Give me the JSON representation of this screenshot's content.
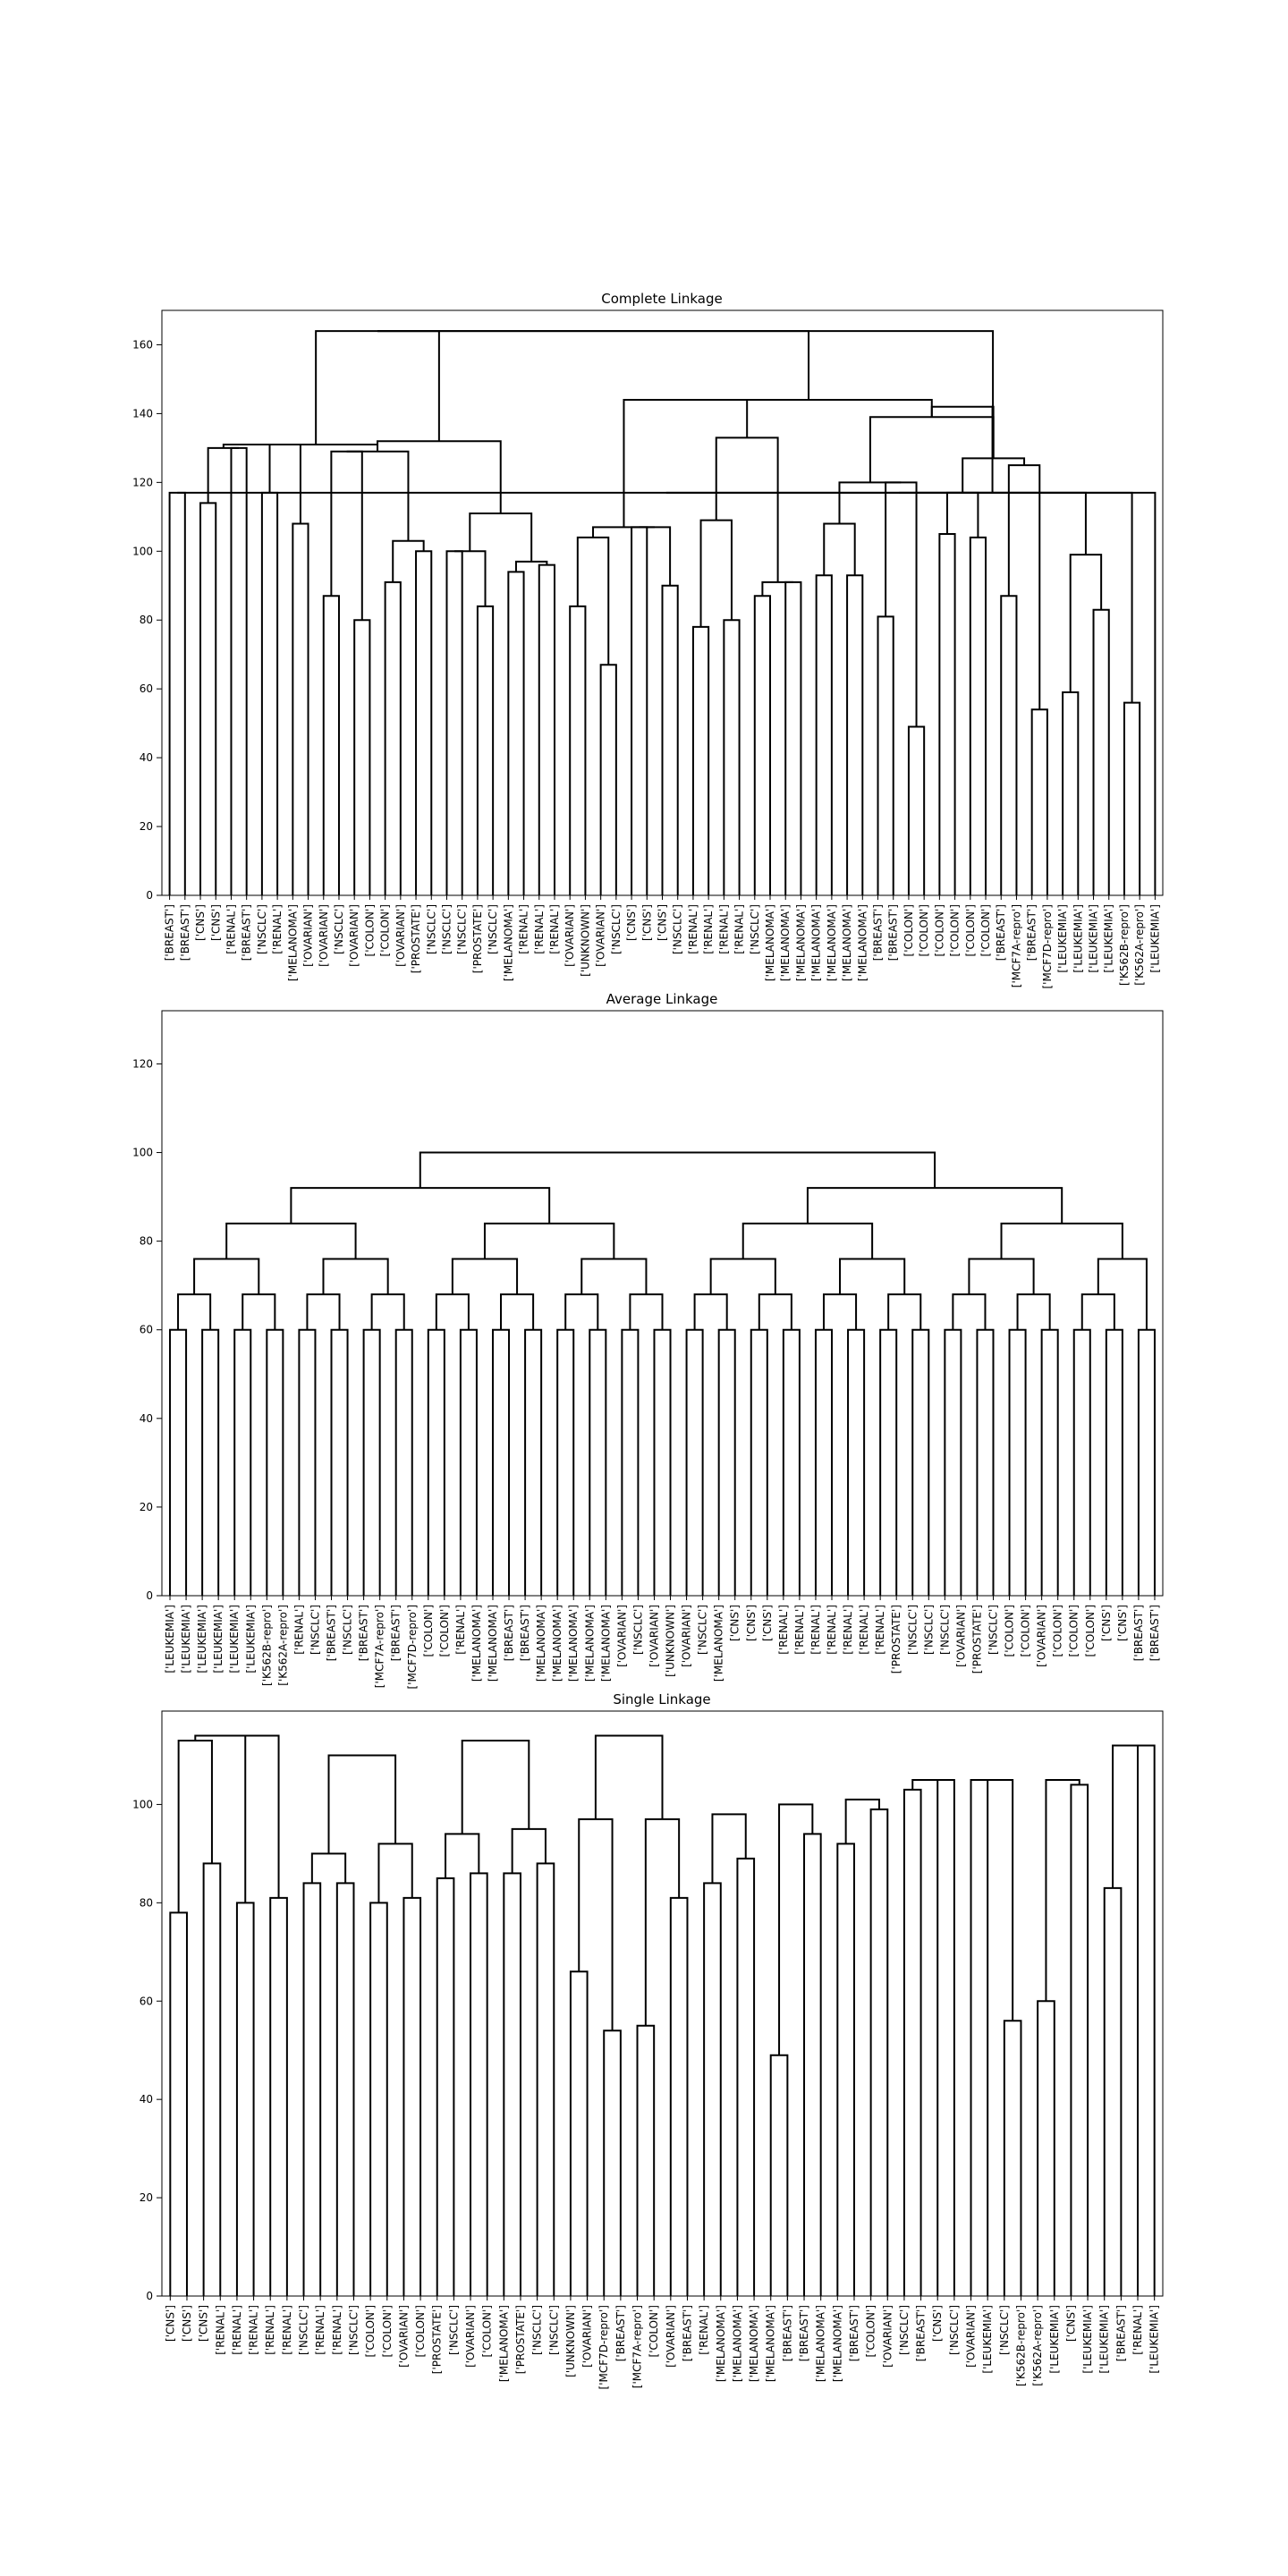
{
  "chart_data": [
    {
      "type": "dendrogram",
      "title": "Complete Linkage",
      "xlabel": "",
      "ylabel": "",
      "ylim": [
        0,
        170
      ],
      "yticks": [
        0,
        20,
        40,
        60,
        80,
        100,
        120,
        140,
        160
      ],
      "grid": false,
      "leaves": [
        "['BREAST']",
        "['BREAST']",
        "['CNS']",
        "['CNS']",
        "['RENAL']",
        "['BREAST']",
        "['NSCLC']",
        "['RENAL']",
        "['MELANOMA']",
        "['OVARIAN']",
        "['OVARIAN']",
        "['NSCLC']",
        "['OVARIAN']",
        "['COLON']",
        "['COLON']",
        "['OVARIAN']",
        "['PROSTATE']",
        "['NSCLC']",
        "['NSCLC']",
        "['NSCLC']",
        "['PROSTATE']",
        "['NSCLC']",
        "['MELANOMA']",
        "['RENAL']",
        "['RENAL']",
        "['RENAL']",
        "['OVARIAN']",
        "['UNKNOWN']",
        "['OVARIAN']",
        "['NSCLC']",
        "['CNS']",
        "['CNS']",
        "['CNS']",
        "['NSCLC']",
        "['RENAL']",
        "['RENAL']",
        "['RENAL']",
        "['RENAL']",
        "['NSCLC']",
        "['MELANOMA']",
        "['MELANOMA']",
        "['MELANOMA']",
        "['MELANOMA']",
        "['MELANOMA']",
        "['MELANOMA']",
        "['MELANOMA']",
        "['BREAST']",
        "['BREAST']",
        "['COLON']",
        "['COLON']",
        "['COLON']",
        "['COLON']",
        "['COLON']",
        "['COLON']",
        "['BREAST']",
        "['MCF7A-repro']",
        "['BREAST']",
        "['MCF7D-repro']",
        "['LEUKEMIA']",
        "['LEUKEMIA']",
        "['LEUKEMIA']",
        "['LEUKEMIA']",
        "['K562B-repro']",
        "['K562A-repro']",
        "['LEUKEMIA']"
      ],
      "merges": [
        [
          0,
          1,
          117
        ],
        [
          2,
          3,
          114
        ],
        [
          4,
          5,
          130
        ],
        [
          6,
          7,
          117
        ],
        [
          8,
          9,
          108
        ],
        [
          10,
          11,
          87
        ],
        [
          12,
          13,
          80
        ],
        [
          14,
          15,
          91
        ],
        [
          16,
          17,
          100
        ],
        [
          18,
          19,
          100
        ],
        [
          20,
          21,
          84
        ],
        [
          22,
          23,
          94
        ],
        [
          24,
          25,
          96
        ],
        [
          26,
          27,
          84
        ],
        [
          28,
          29,
          67
        ],
        [
          30,
          31,
          107
        ],
        [
          32,
          33,
          90
        ],
        [
          34,
          35,
          78
        ],
        [
          36,
          37,
          80
        ],
        [
          38,
          39,
          87
        ],
        [
          40,
          41,
          91
        ],
        [
          42,
          43,
          93
        ],
        [
          44,
          45,
          93
        ],
        [
          46,
          47,
          81
        ],
        [
          48,
          49,
          49
        ],
        [
          50,
          51,
          105
        ],
        [
          52,
          53,
          104
        ],
        [
          54,
          55,
          87
        ],
        [
          56,
          57,
          54
        ],
        [
          58,
          59,
          59
        ],
        [
          60,
          61,
          83
        ],
        [
          62,
          63,
          56
        ],
        [
          64,
          65,
          65
        ],
        [
          66,
          67,
          111
        ],
        [
          68,
          69,
          131
        ],
        [
          70,
          71,
          129
        ],
        [
          72,
          73,
          103
        ],
        [
          74,
          75,
          97
        ],
        [
          76,
          77,
          97
        ],
        [
          78,
          79,
          104
        ],
        [
          80,
          81,
          106
        ],
        [
          82,
          83,
          109
        ],
        [
          84,
          85,
          84
        ],
        [
          86,
          87,
          108
        ],
        [
          88,
          89,
          120
        ],
        [
          90,
          91,
          117
        ],
        [
          92,
          93,
          125
        ],
        [
          94,
          95,
          99
        ],
        [
          96,
          97,
          105
        ],
        [
          98,
          99,
          98
        ],
        [
          100,
          101,
          95
        ],
        [
          102,
          103,
          111
        ],
        [
          104,
          105,
          99
        ],
        [
          106,
          107,
          133
        ],
        [
          108,
          109,
          111
        ],
        [
          110,
          111,
          127
        ],
        [
          112,
          113,
          109
        ],
        [
          114,
          115,
          124
        ],
        [
          115,
          116,
          132
        ],
        [
          117,
          118,
          144
        ],
        [
          119,
          120,
          139
        ],
        [
          120,
          121,
          142
        ],
        [
          122,
          123,
          164
        ],
        [
          124,
          125,
          130
        ],
        [
          125,
          126,
          138
        ],
        [
          126,
          127,
          95
        ],
        [
          127,
          128,
          96
        ]
      ]
    },
    {
      "type": "dendrogram",
      "title": "Average Linkage",
      "xlabel": "",
      "ylabel": "",
      "ylim": [
        0,
        132
      ],
      "yticks": [
        0,
        20,
        40,
        60,
        80,
        100,
        120
      ],
      "grid": false,
      "leaves": [
        "['LEUKEMIA']",
        "['LEUKEMIA']",
        "['LEUKEMIA']",
        "['LEUKEMIA']",
        "['LEUKEMIA']",
        "['LEUKEMIA']",
        "['K562B-repro']",
        "['K562A-repro']",
        "['RENAL']",
        "['NSCLC']",
        "['BREAST']",
        "['NSCLC']",
        "['BREAST']",
        "['MCF7A-repro']",
        "['BREAST']",
        "['MCF7D-repro']",
        "['COLON']",
        "['COLON']",
        "['RENAL']",
        "['MELANOMA']",
        "['MELANOMA']",
        "['BREAST']",
        "['BREAST']",
        "['MELANOMA']",
        "['MELANOMA']",
        "['MELANOMA']",
        "['MELANOMA']",
        "['MELANOMA']",
        "['OVARIAN']",
        "['NSCLC']",
        "['OVARIAN']",
        "['UNKNOWN']",
        "['OVARIAN']",
        "['NSCLC']",
        "['MELANOMA']",
        "['CNS']",
        "['CNS']",
        "['CNS']",
        "['RENAL']",
        "['RENAL']",
        "['RENAL']",
        "['RENAL']",
        "['RENAL']",
        "['RENAL']",
        "['RENAL']",
        "['PROSTATE']",
        "['NSCLC']",
        "['NSCLC']",
        "['NSCLC']",
        "['OVARIAN']",
        "['PROSTATE']",
        "['NSCLC']",
        "['COLON']",
        "['COLON']",
        "['OVARIAN']",
        "['COLON']",
        "['COLON']",
        "['COLON']",
        "['CNS']",
        "['CNS']",
        "['BREAST']",
        "['BREAST']"
      ]
    },
    {
      "type": "dendrogram",
      "title": "Single Linkage",
      "xlabel": "",
      "ylabel": "",
      "ylim": [
        0,
        119
      ],
      "yticks": [
        0,
        20,
        40,
        60,
        80,
        100
      ],
      "grid": false,
      "leaves": [
        "['CNS']",
        "['CNS']",
        "['CNS']",
        "['RENAL']",
        "['RENAL']",
        "['RENAL']",
        "['RENAL']",
        "['RENAL']",
        "['NSCLC']",
        "['RENAL']",
        "['RENAL']",
        "['NSCLC']",
        "['COLON']",
        "['COLON']",
        "['OVARIAN']",
        "['COLON']",
        "['PROSTATE']",
        "['NSCLC']",
        "['OVARIAN']",
        "['COLON']",
        "['MELANOMA']",
        "['PROSTATE']",
        "['NSCLC']",
        "['NSCLC']",
        "['UNKNOWN']",
        "['OVARIAN']",
        "['MCF7D-repro']",
        "['BREAST']",
        "['MCF7A-repro']",
        "['COLON']",
        "['OVARIAN']",
        "['BREAST']",
        "['RENAL']",
        "['MELANOMA']",
        "['MELANOMA']",
        "['MELANOMA']",
        "['MELANOMA']",
        "['BREAST']",
        "['BREAST']",
        "['MELANOMA']",
        "['MELANOMA']",
        "['BREAST']",
        "['COLON']",
        "['OVARIAN']",
        "['NSCLC']",
        "['BREAST']",
        "['CNS']",
        "['NSCLC']",
        "['OVARIAN']",
        "['LEUKEMIA']",
        "['NSCLC']",
        "['K562B-repro']",
        "['K562A-repro']",
        "['LEUKEMIA']",
        "['CNS']",
        "['LEUKEMIA']",
        "['LEUKEMIA']",
        "['BREAST']",
        "['RENAL']",
        "['LEUKEMIA']"
      ],
      "merges": [
        [
          0,
          1,
          78
        ],
        [
          2,
          3,
          88
        ],
        [
          4,
          5,
          80
        ],
        [
          6,
          7,
          81
        ],
        [
          8,
          9,
          84
        ],
        [
          10,
          11,
          84
        ],
        [
          12,
          13,
          80
        ],
        [
          14,
          15,
          81
        ],
        [
          16,
          17,
          85
        ],
        [
          18,
          19,
          86
        ],
        [
          20,
          21,
          86
        ],
        [
          22,
          23,
          88
        ],
        [
          24,
          25,
          66
        ],
        [
          26,
          27,
          54
        ],
        [
          28,
          29,
          55
        ],
        [
          30,
          31,
          81
        ],
        [
          32,
          33,
          84
        ],
        [
          34,
          35,
          89
        ],
        [
          36,
          37,
          49
        ],
        [
          38,
          39,
          94
        ],
        [
          40,
          41,
          92
        ],
        [
          42,
          43,
          99
        ],
        [
          44,
          45,
          103
        ],
        [
          46,
          47,
          105
        ],
        [
          48,
          49,
          105
        ],
        [
          50,
          51,
          56
        ],
        [
          52,
          53,
          60
        ],
        [
          54,
          55,
          104
        ],
        [
          56,
          57,
          83
        ],
        [
          58,
          59,
          112
        ],
        [
          60,
          61,
          113
        ],
        [
          62,
          63,
          114
        ],
        [
          64,
          65,
          90
        ],
        [
          66,
          67,
          92
        ],
        [
          68,
          69,
          94
        ],
        [
          70,
          71,
          95
        ],
        [
          72,
          73,
          97
        ],
        [
          74,
          75,
          97
        ],
        [
          76,
          77,
          98
        ],
        [
          78,
          79,
          100
        ],
        [
          80,
          81,
          101
        ],
        [
          82,
          83,
          102
        ],
        [
          84,
          85,
          104
        ],
        [
          86,
          87,
          105
        ],
        [
          88,
          89,
          107
        ],
        [
          90,
          91,
          108
        ],
        [
          92,
          93,
          110
        ],
        [
          94,
          95,
          113
        ],
        [
          96,
          97,
          114
        ]
      ]
    }
  ]
}
